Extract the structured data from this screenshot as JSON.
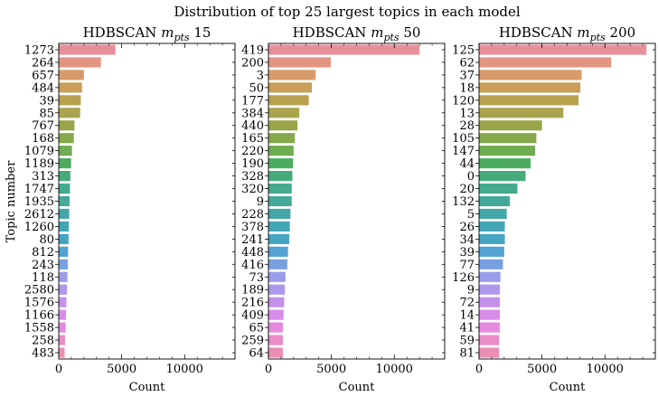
{
  "figure": {
    "suptitle": "Distribution of top 25 largest topics in each model",
    "ylabel": "Topic number"
  },
  "palette": [
    "#e8909a",
    "#e29681",
    "#d99a6a",
    "#c99e58",
    "#b9a04f",
    "#a9a34d",
    "#9aa54b",
    "#86a94c",
    "#6eac50",
    "#4cac5e",
    "#46ab7b",
    "#44aa8d",
    "#43a999",
    "#43a7a7",
    "#44a6b4",
    "#46a4c3",
    "#52a2d3",
    "#77a0e1",
    "#999ce8",
    "#ad98eb",
    "#c292eb",
    "#d88ce9",
    "#e68ae0",
    "#ea8cc8",
    "#eb8eb4"
  ],
  "chart_data": [
    {
      "type": "bar",
      "orientation": "horizontal",
      "title": "HDBSCAN m_pts 15",
      "title_main": "HDBSCAN ",
      "title_m": "m",
      "title_sub": "pts",
      "title_num": " 15",
      "xlabel": "Count",
      "xlim": [
        0,
        14000
      ],
      "xticks": [
        0,
        5000,
        10000
      ],
      "xtick_labels": [
        "0",
        "5000",
        "10000"
      ],
      "categories": [
        "1273",
        "264",
        "657",
        "484",
        "39",
        "85",
        "767",
        "168",
        "1079",
        "1189",
        "313",
        "1747",
        "1935",
        "2612",
        "1260",
        "80",
        "812",
        "243",
        "118",
        "2580",
        "1576",
        "1166",
        "1558",
        "258",
        "483"
      ],
      "values": [
        4500,
        3350,
        2000,
        1850,
        1750,
        1700,
        1250,
        1200,
        1050,
        980,
        920,
        890,
        860,
        830,
        800,
        780,
        740,
        720,
        690,
        650,
        610,
        580,
        550,
        500,
        470
      ]
    },
    {
      "type": "bar",
      "orientation": "horizontal",
      "title": "HDBSCAN m_pts 50",
      "title_main": "HDBSCAN ",
      "title_m": "m",
      "title_sub": "pts",
      "title_num": " 50",
      "xlabel": "Count",
      "xlim": [
        0,
        14000
      ],
      "xticks": [
        0,
        5000,
        10000
      ],
      "xtick_labels": [
        "0",
        "5000",
        "10000"
      ],
      "categories": [
        "419",
        "200",
        "3",
        "50",
        "177",
        "384",
        "440",
        "165",
        "220",
        "190",
        "328",
        "320",
        "9",
        "228",
        "378",
        "241",
        "448",
        "416",
        "73",
        "189",
        "216",
        "409",
        "65",
        "259",
        "64"
      ],
      "values": [
        12000,
        4950,
        3750,
        3450,
        3200,
        2450,
        2300,
        2100,
        2000,
        1950,
        1900,
        1850,
        1850,
        1750,
        1700,
        1650,
        1550,
        1500,
        1350,
        1300,
        1250,
        1200,
        1150,
        1150,
        1150
      ]
    },
    {
      "type": "bar",
      "orientation": "horizontal",
      "title": "HDBSCAN m_pts 200",
      "title_main": "HDBSCAN ",
      "title_m": "m",
      "title_sub": "pts",
      "title_num": " 200",
      "xlabel": "Count",
      "xlim": [
        0,
        14000
      ],
      "xticks": [
        0,
        5000,
        10000
      ],
      "xtick_labels": [
        "0",
        "5000",
        "10000"
      ],
      "categories": [
        "125",
        "62",
        "37",
        "18",
        "120",
        "13",
        "28",
        "105",
        "147",
        "44",
        "0",
        "20",
        "132",
        "5",
        "26",
        "34",
        "39",
        "77",
        "126",
        "9",
        "72",
        "14",
        "41",
        "59",
        "81"
      ],
      "values": [
        13300,
        10500,
        8150,
        8050,
        7900,
        6700,
        5000,
        4550,
        4450,
        4100,
        3700,
        3050,
        2450,
        2200,
        2050,
        2050,
        2000,
        1900,
        1700,
        1650,
        1650,
        1650,
        1650,
        1600,
        1600
      ]
    }
  ]
}
